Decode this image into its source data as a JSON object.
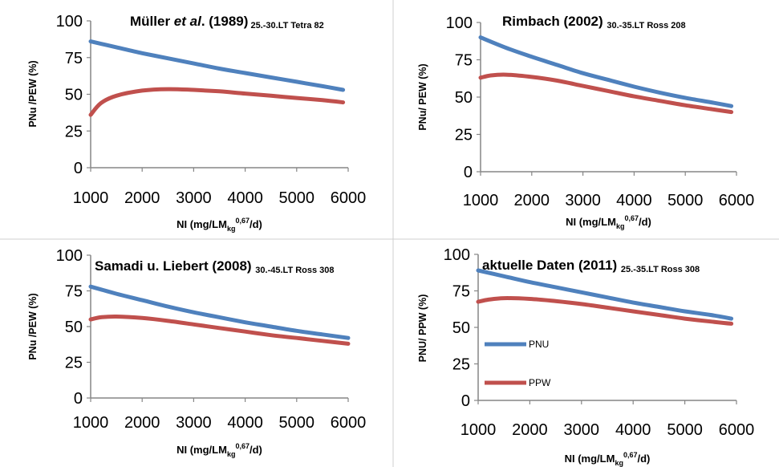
{
  "chart_data": [
    {
      "type": "line",
      "title": {
        "main": "Müller ",
        "italic": "et al",
        "after": ". (1989)",
        "small": "25.-30.LT Tetra 82"
      },
      "ylabel": "PNu /PEW (%)",
      "xlabel": {
        "pre": "NI (mg/LM",
        "sub": "kg",
        "sup": "0,67",
        "post": "/d)"
      },
      "xlim": [
        1000,
        6000
      ],
      "ylim": [
        0,
        100
      ],
      "xticks": [
        "1000",
        "2000",
        "3000",
        "4000",
        "5000",
        "6000"
      ],
      "yticks": [
        "0",
        "25",
        "50",
        "75",
        "100"
      ],
      "series": [
        {
          "color": "#4f81bd",
          "x": [
            1000,
            1500,
            2000,
            2500,
            3000,
            3500,
            4000,
            4500,
            5000,
            5500,
            5900
          ],
          "y": [
            86,
            82,
            78,
            74.5,
            71,
            67.5,
            64.5,
            61.5,
            58.5,
            55.5,
            53
          ]
        },
        {
          "color": "#c0504d",
          "x": [
            1000,
            1200,
            1500,
            2000,
            2500,
            3000,
            3500,
            4000,
            4500,
            5000,
            5500,
            5900
          ],
          "y": [
            36,
            44,
            49,
            52.5,
            53.5,
            53,
            52,
            50.5,
            49,
            47.5,
            46,
            44.5
          ]
        }
      ]
    },
    {
      "type": "line",
      "title": {
        "main": "Rimbach (2002) ",
        "small": "30.-35.LT Ross 208"
      },
      "ylabel": "PNu/ PEW (%)",
      "xlabel": {
        "pre": "NI (mg/LM",
        "sub": "kg",
        "sup": "0,67",
        "post": "/d)"
      },
      "xlim": [
        1000,
        6000
      ],
      "ylim": [
        0,
        100
      ],
      "xticks": [
        "1000",
        "2000",
        "3000",
        "4000",
        "5000",
        "6000"
      ],
      "yticks": [
        "0",
        "25",
        "50",
        "75",
        "100"
      ],
      "series": [
        {
          "color": "#4f81bd",
          "x": [
            1000,
            1500,
            2000,
            2500,
            3000,
            3500,
            4000,
            4500,
            5000,
            5500,
            5900
          ],
          "y": [
            90,
            83,
            77,
            71.5,
            66,
            61.5,
            57,
            53,
            49.5,
            46.5,
            44
          ]
        },
        {
          "color": "#c0504d",
          "x": [
            1000,
            1200,
            1500,
            2000,
            2500,
            3000,
            3500,
            4000,
            4500,
            5000,
            5500,
            5900
          ],
          "y": [
            63,
            64.5,
            65,
            63.5,
            61,
            57.5,
            54,
            50.5,
            47.5,
            44.5,
            42,
            40
          ]
        }
      ]
    },
    {
      "type": "line",
      "title": {
        "main": "Samadi u. Liebert (2008) ",
        "small": "30.-45.LT Ross 308"
      },
      "ylabel": "PNu /PEW (%)",
      "xlabel": {
        "pre": "NI (mg/LM",
        "sub": "kg",
        "sup": "0,67",
        "post": "/d)"
      },
      "xlim": [
        1000,
        6000
      ],
      "ylim": [
        0,
        100
      ],
      "xticks": [
        "1000",
        "2000",
        "3000",
        "4000",
        "5000",
        "6000"
      ],
      "yticks": [
        "0",
        "25",
        "50",
        "75",
        "100"
      ],
      "series": [
        {
          "color": "#4f81bd",
          "x": [
            1000,
            1500,
            2000,
            2500,
            3000,
            3500,
            4000,
            4500,
            5000,
            5500,
            6000
          ],
          "y": [
            78,
            73,
            68.5,
            64,
            60,
            56.5,
            53,
            50,
            47,
            44.5,
            42
          ]
        },
        {
          "color": "#c0504d",
          "x": [
            1000,
            1200,
            1500,
            2000,
            2500,
            3000,
            3500,
            4000,
            4500,
            5000,
            5500,
            6000
          ],
          "y": [
            55,
            56.5,
            57,
            56,
            54,
            51.5,
            49,
            46.5,
            44,
            42,
            40,
            38
          ]
        }
      ]
    },
    {
      "type": "line",
      "title": {
        "main": "aktuelle Daten (2011) ",
        "small": "25.-35.LT Ross 308"
      },
      "ylabel": "PNU/ PPW (%)",
      "xlabel": {
        "pre": "NI (mg/LM",
        "sub": "kg",
        "sup": "0,67",
        "post": "/d)"
      },
      "xlim": [
        1000,
        6000
      ],
      "ylim": [
        0,
        100
      ],
      "xticks": [
        "1000",
        "2000",
        "3000",
        "4000",
        "5000",
        "6000"
      ],
      "yticks": [
        "0",
        "25",
        "50",
        "75",
        "100"
      ],
      "legend": {
        "position": "left-middle"
      },
      "series": [
        {
          "name": "PNU",
          "color": "#4f81bd",
          "x": [
            1000,
            1500,
            2000,
            2500,
            3000,
            3500,
            4000,
            4500,
            5000,
            5500,
            5900
          ],
          "y": [
            89,
            85,
            81,
            77.5,
            74,
            70.5,
            67,
            64,
            61,
            58.5,
            56
          ]
        },
        {
          "name": "PPW",
          "color": "#c0504d",
          "x": [
            1000,
            1200,
            1500,
            2000,
            2500,
            3000,
            3500,
            4000,
            4500,
            5000,
            5500,
            5900
          ],
          "y": [
            67.5,
            69,
            70,
            69.5,
            68,
            66,
            63.5,
            61,
            58.5,
            56,
            54,
            52.5
          ]
        }
      ]
    }
  ]
}
